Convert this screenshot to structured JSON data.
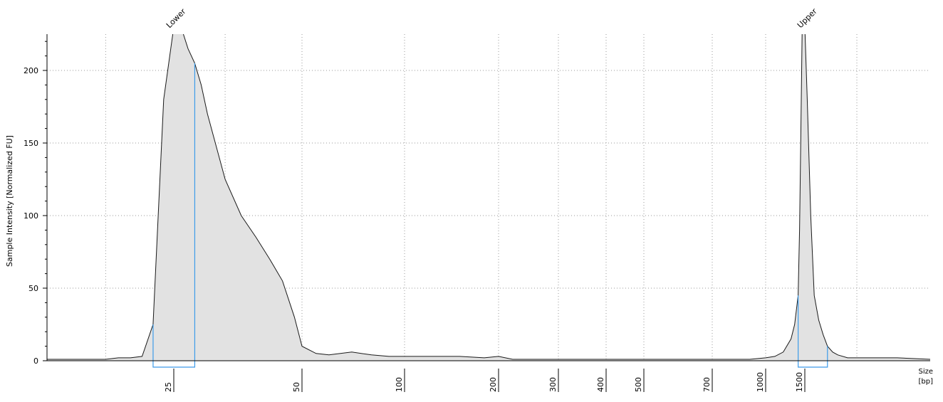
{
  "chart_data": {
    "type": "area",
    "ylabel": "Sample Intensity [Normalized FU]",
    "xlabel": "Size\n[bp]",
    "xlabel_lines": [
      "Size",
      "[bp]"
    ],
    "ylim": [
      0,
      225
    ],
    "yticks": [
      0,
      50,
      100,
      150,
      200
    ],
    "x_ticks": [
      "25",
      "50",
      "100",
      "200",
      "300",
      "400",
      "500",
      "700",
      "1000",
      "1500"
    ],
    "grid": true,
    "peak_labels": [
      {
        "text": "Lower",
        "size_bp": 25
      },
      {
        "text": "Upper",
        "size_bp": 1500
      }
    ],
    "regions": [
      {
        "name": "Lower",
        "from_bp": 23,
        "to_bp": 28
      },
      {
        "name": "Upper",
        "from_bp": 1400,
        "to_bp": 1700
      }
    ],
    "series": [
      {
        "x": [
          15,
          17,
          19,
          20,
          21,
          22,
          23,
          24,
          25,
          26,
          27,
          28,
          29,
          30,
          33,
          36,
          39,
          42,
          45,
          48,
          50,
          55,
          60,
          70,
          80,
          90,
          100,
          120,
          150,
          180,
          200,
          220,
          250,
          300,
          350,
          400,
          450,
          500,
          600,
          700,
          800,
          900,
          1000,
          1100,
          1200,
          1300,
          1350,
          1400,
          1420,
          1440,
          1460,
          1480,
          1500,
          1520,
          1550,
          1580,
          1620,
          1660,
          1700,
          1750,
          1800,
          1900,
          2000,
          2200,
          2500,
          3000
        ],
        "y": [
          1,
          1,
          1,
          2,
          2,
          3,
          25,
          180,
          230,
          230,
          215,
          205,
          190,
          170,
          125,
          100,
          85,
          70,
          55,
          30,
          10,
          5,
          4,
          6,
          4,
          3,
          3,
          3,
          3,
          2,
          3,
          1,
          1,
          1,
          1,
          1,
          1,
          1,
          1,
          1,
          1,
          1,
          2,
          3,
          6,
          15,
          25,
          45,
          90,
          160,
          230,
          230,
          230,
          180,
          100,
          45,
          28,
          18,
          10,
          6,
          4,
          2,
          2,
          2,
          2,
          1
        ]
      }
    ]
  }
}
